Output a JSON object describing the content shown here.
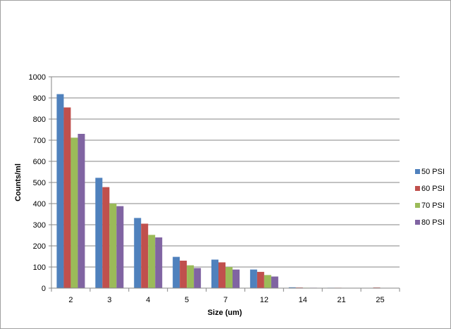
{
  "chart_data": {
    "type": "bar",
    "title": "",
    "xlabel": "Size (um)",
    "ylabel": "Counts/ml",
    "ylim": [
      0,
      1000
    ],
    "yticks": [
      "0",
      "100",
      "200",
      "300",
      "400",
      "500",
      "600",
      "700",
      "800",
      "900",
      "1000"
    ],
    "grid": true,
    "legend_position": "right",
    "categories": [
      "2",
      "3",
      "4",
      "5",
      "7",
      "12",
      "14",
      "21",
      "25"
    ],
    "series": [
      {
        "name": "50 PSI",
        "color": "#4f81bd",
        "values": [
          918,
          522,
          332,
          148,
          135,
          88,
          4,
          2,
          1
        ]
      },
      {
        "name": "60 PSI",
        "color": "#c0504d",
        "values": [
          855,
          478,
          305,
          130,
          122,
          77,
          3,
          2,
          3
        ]
      },
      {
        "name": "70 PSI",
        "color": "#9bbb59",
        "values": [
          712,
          400,
          252,
          108,
          100,
          62,
          2,
          1,
          1
        ]
      },
      {
        "name": "80 PSI",
        "color": "#8064a2",
        "values": [
          730,
          388,
          240,
          95,
          88,
          55,
          2,
          1,
          1
        ]
      }
    ]
  }
}
